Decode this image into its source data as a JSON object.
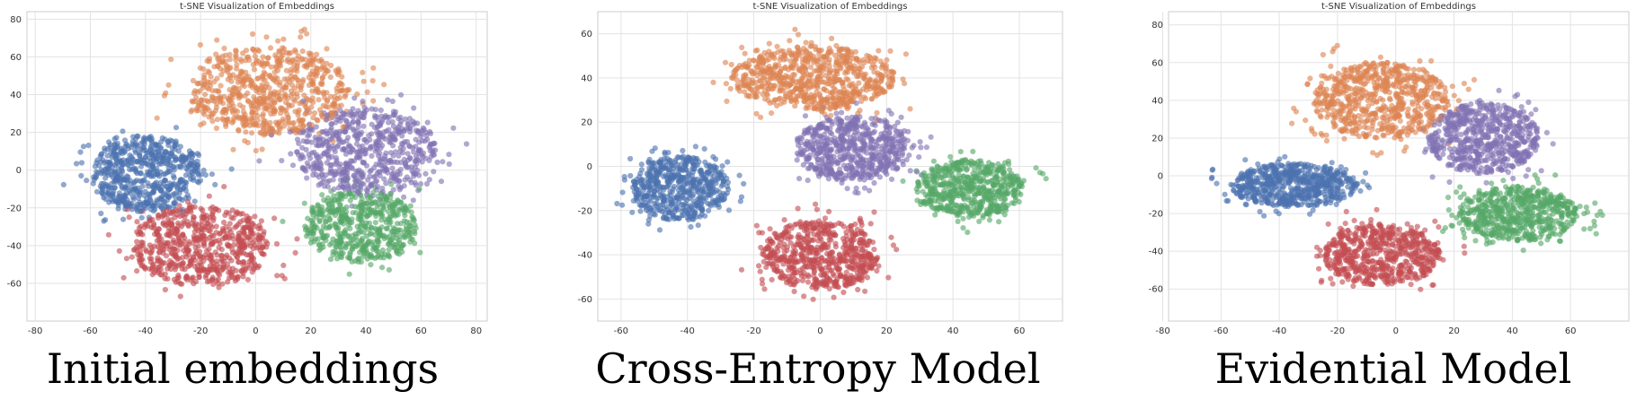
{
  "chart_data": [
    {
      "type": "scatter",
      "title": "t-SNE Visualization of Embeddings",
      "caption": "Initial embeddings",
      "xlabel": "",
      "ylabel": "",
      "xlim": [
        -83,
        84
      ],
      "ylim": [
        -80,
        84
      ],
      "xticks": [
        -80,
        -60,
        -40,
        -20,
        0,
        20,
        40,
        60,
        80
      ],
      "yticks": [
        -60,
        -40,
        -20,
        0,
        20,
        40,
        60,
        80
      ],
      "grid": true,
      "legend": "none",
      "series": [
        {
          "color": "#4c72b0",
          "cx": -40,
          "cy": -2,
          "sx": 14,
          "sy": 14,
          "n": 620
        },
        {
          "color": "#dd8452",
          "cx": 5,
          "cy": 42,
          "sx": 20,
          "sy": 16,
          "n": 680
        },
        {
          "color": "#8172b3",
          "cx": 40,
          "cy": 10,
          "sx": 18,
          "sy": 16,
          "n": 620
        },
        {
          "color": "#55a868",
          "cx": 38,
          "cy": -30,
          "sx": 14,
          "sy": 13,
          "n": 520
        },
        {
          "color": "#c44e52",
          "cx": -20,
          "cy": -40,
          "sx": 17,
          "sy": 15,
          "n": 640
        }
      ]
    },
    {
      "type": "scatter",
      "title": "t-SNE Visualization of Embeddings",
      "caption": "Cross-Entropy Model",
      "xlabel": "",
      "ylabel": "",
      "xlim": [
        -67,
        73
      ],
      "ylim": [
        -70,
        70
      ],
      "xticks": [
        -60,
        -40,
        -20,
        0,
        20,
        40,
        60
      ],
      "yticks": [
        -60,
        -40,
        -20,
        0,
        20,
        40,
        60
      ],
      "grid": true,
      "legend": "none",
      "series": [
        {
          "color": "#4c72b0",
          "cx": -42,
          "cy": -10,
          "sx": 10,
          "sy": 10,
          "n": 560
        },
        {
          "color": "#dd8452",
          "cx": -2,
          "cy": 40,
          "sx": 17,
          "sy": 10,
          "n": 720
        },
        {
          "color": "#8172b3",
          "cx": 10,
          "cy": 8,
          "sx": 12,
          "sy": 10,
          "n": 620
        },
        {
          "color": "#55a868",
          "cx": 45,
          "cy": -10,
          "sx": 11,
          "sy": 9,
          "n": 560
        },
        {
          "color": "#c44e52",
          "cx": 0,
          "cy": -40,
          "sx": 12,
          "sy": 11,
          "n": 620
        }
      ]
    },
    {
      "type": "scatter",
      "title": "t-SNE Visualization of Embeddings",
      "caption": "Evidential Model",
      "xlabel": "",
      "ylabel": "",
      "xlim": [
        -78,
        80
      ],
      "ylim": [
        -77,
        87
      ],
      "xticks": [
        -80,
        -60,
        -40,
        -20,
        0,
        20,
        40,
        60
      ],
      "yticks": [
        -60,
        -40,
        -20,
        0,
        20,
        40,
        60,
        80
      ],
      "grid": true,
      "legend": "none",
      "series": [
        {
          "color": "#4c72b0",
          "cx": -35,
          "cy": -5,
          "sx": 15,
          "sy": 8,
          "n": 620
        },
        {
          "color": "#dd8452",
          "cx": -5,
          "cy": 40,
          "sx": 16,
          "sy": 14,
          "n": 680
        },
        {
          "color": "#8172b3",
          "cx": 30,
          "cy": 20,
          "sx": 13,
          "sy": 13,
          "n": 620
        },
        {
          "color": "#55a868",
          "cx": 42,
          "cy": -20,
          "sx": 14,
          "sy": 10,
          "n": 600
        },
        {
          "color": "#c44e52",
          "cx": -5,
          "cy": -42,
          "sx": 14,
          "sy": 11,
          "n": 620
        }
      ]
    }
  ]
}
